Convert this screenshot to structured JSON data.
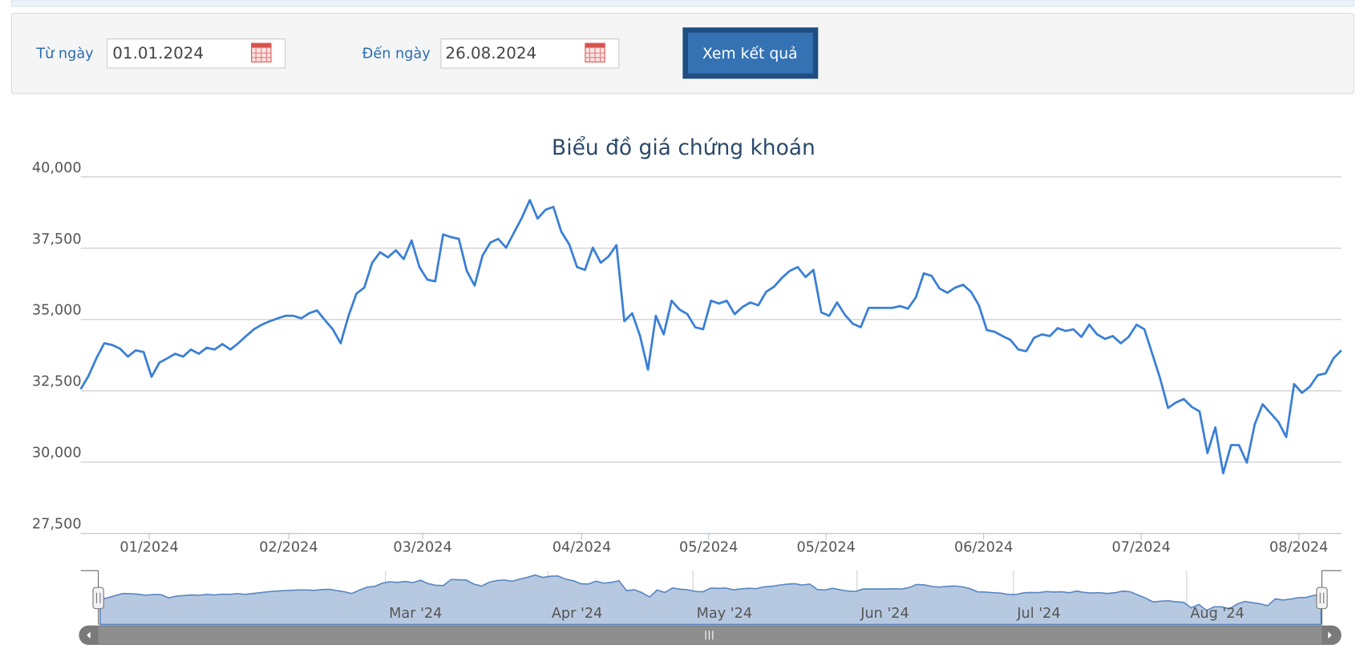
{
  "form": {
    "from_label": "Từ ngày",
    "from_value": "01.01.2024",
    "to_label": "Đến ngày",
    "to_value": "26.08.2024",
    "button": "Xem kết quả"
  },
  "chart_data": {
    "type": "line",
    "title": "Biểu đồ giá chứng khoán",
    "series": [
      {
        "color": "#3a7fd5",
        "values": [
          32560,
          33020,
          33640,
          34170,
          34110,
          33980,
          33700,
          33920,
          33860,
          32990,
          33490,
          33640,
          33800,
          33700,
          33950,
          33800,
          34010,
          33950,
          34140,
          33950,
          34170,
          34420,
          34660,
          34820,
          34940,
          35040,
          35130,
          35130,
          35040,
          35220,
          35320,
          34980,
          34660,
          34170,
          35130,
          35910,
          36120,
          36990,
          37360,
          37180,
          37430,
          37120,
          37770,
          36840,
          36400,
          36340,
          37980,
          37890,
          37830,
          36710,
          36190,
          37240,
          37700,
          37830,
          37520,
          38050,
          38570,
          39190,
          38540,
          38850,
          38950,
          38080,
          37640,
          36840,
          36740,
          37520,
          36990,
          37210,
          37610,
          34940,
          35220,
          34420,
          33240,
          35130,
          34480,
          35660,
          35350,
          35190,
          34730,
          34660,
          35660,
          35560,
          35660,
          35190,
          35440,
          35600,
          35500,
          35970,
          36150,
          36460,
          36710,
          36840,
          36490,
          36740,
          35250,
          35130,
          35600,
          35160,
          34850,
          34730,
          35410,
          35410,
          35410,
          35410,
          35470,
          35380,
          35780,
          36620,
          36530,
          36090,
          35940,
          36120,
          36220,
          35970,
          35500,
          34630,
          34570,
          34420,
          34290,
          33950,
          33890,
          34360,
          34480,
          34420,
          34700,
          34600,
          34660,
          34390,
          34820,
          34480,
          34320,
          34420,
          34170,
          34390,
          34820,
          34660,
          33800,
          32930,
          31900,
          32090,
          32210,
          31940,
          31780,
          30320,
          31220,
          29610,
          30600,
          30600,
          29980,
          31320,
          32030,
          31720,
          31410,
          30880,
          32740,
          32430,
          32650,
          33050,
          33110,
          33640,
          33920
        ]
      }
    ],
    "xlim": [
      0,
      160
    ],
    "xticks": [
      {
        "value": 8.7,
        "label": "01/2024"
      },
      {
        "value": 26.4,
        "label": "02/2024"
      },
      {
        "value": 43.4,
        "label": "03/2024"
      },
      {
        "value": 63.6,
        "label": "04/2024"
      },
      {
        "value": 79.7,
        "label": "05/2024"
      },
      {
        "value": 94.6,
        "label": "05/2024"
      },
      {
        "value": 114.6,
        "label": "06/2024"
      },
      {
        "value": 134.6,
        "label": "07/2024"
      },
      {
        "value": 154.6,
        "label": "08/2024"
      }
    ],
    "ylim": [
      27500,
      40000
    ],
    "yticks": [
      {
        "value": 27500,
        "label": "27,500"
      },
      {
        "value": 30000,
        "label": "30,000"
      },
      {
        "value": 32500,
        "label": "32,500"
      },
      {
        "value": 35000,
        "label": "35,000"
      },
      {
        "value": 37500,
        "label": "37,500"
      },
      {
        "value": 40000,
        "label": "40,000"
      }
    ],
    "grid": true,
    "navigator_ticks": [
      {
        "value": 37.4,
        "label": "Mar '24"
      },
      {
        "value": 58.7,
        "label": "Apr '24"
      },
      {
        "value": 77.7,
        "label": "May '24"
      },
      {
        "value": 99.2,
        "label": "Jun '24"
      },
      {
        "value": 119.7,
        "label": "Jul '24"
      },
      {
        "value": 142.4,
        "label": "Aug '24"
      }
    ]
  }
}
